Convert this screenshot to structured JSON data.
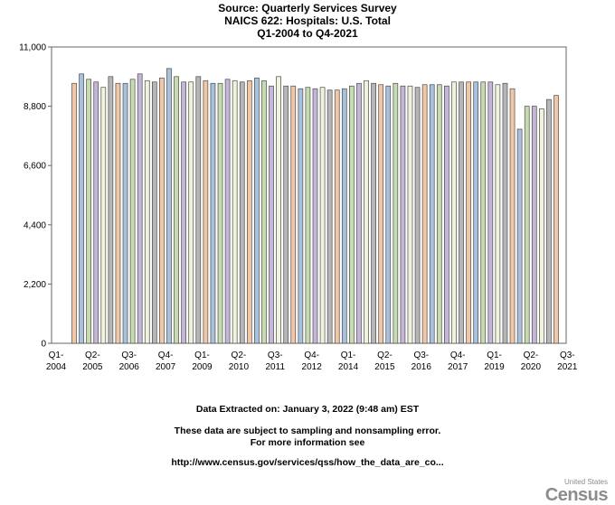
{
  "titles": {
    "line1": "Source: Quarterly Services Survey",
    "line2": "NAICS 622: Hospitals: U.S. Total",
    "line3": "Q1-2004 to Q4-2021"
  },
  "footer": {
    "extracted": "Data Extracted on: January 3, 2022 (9:48 am) EST",
    "note1": "These data are subject to sampling and nonsampling error.",
    "note2": "For more information see",
    "url": "http://www.census.gov/services/qss/how_the_data_are_co..."
  },
  "logo": {
    "small": "United States",
    "big": "Census"
  },
  "chart_data": {
    "type": "bar",
    "ylim": [
      0,
      11000
    ],
    "yticks": [
      0,
      2200,
      4400,
      6600,
      8800,
      11000
    ],
    "ytick_labels": [
      "0",
      "2,200",
      "4,400",
      "6,600",
      "8,800",
      "11,000"
    ],
    "xtick_labels": [
      [
        "Q1-",
        "2004"
      ],
      [
        "Q2-",
        "2005"
      ],
      [
        "Q3-",
        "2006"
      ],
      [
        "Q4-",
        "2007"
      ],
      [
        "Q1-",
        "2009"
      ],
      [
        "Q2-",
        "2010"
      ],
      [
        "Q3-",
        "2011"
      ],
      [
        "Q4-",
        "2012"
      ],
      [
        "Q1-",
        "2014"
      ],
      [
        "Q2-",
        "2015"
      ],
      [
        "Q3-",
        "2016"
      ],
      [
        "Q4-",
        "2017"
      ],
      [
        "Q1-",
        "2019"
      ],
      [
        "Q2-",
        "2020"
      ],
      [
        "Q3-",
        "2021"
      ]
    ],
    "values": [
      9650,
      10000,
      9800,
      9700,
      9500,
      9900,
      9650,
      9650,
      9800,
      10000,
      9750,
      9700,
      9850,
      10200,
      9900,
      9700,
      9700,
      9900,
      9750,
      9650,
      9650,
      9800,
      9750,
      9700,
      9750,
      9850,
      9750,
      9550,
      9900,
      9550,
      9550,
      9450,
      9500,
      9450,
      9500,
      9400,
      9400,
      9450,
      9550,
      9650,
      9750,
      9650,
      9600,
      9550,
      9650,
      9550,
      9550,
      9500,
      9600,
      9600,
      9600,
      9550,
      9700,
      9700,
      9700,
      9700,
      9700,
      9700,
      9600,
      9650,
      9450,
      7950,
      8800,
      8800,
      8700,
      9050,
      9200
    ],
    "bar_colors": [
      "#f2c7a6",
      "#a9c1db",
      "#c6dbb0",
      "#c4b6d6",
      "#f2f2dc",
      "#b6b6b6"
    ]
  }
}
